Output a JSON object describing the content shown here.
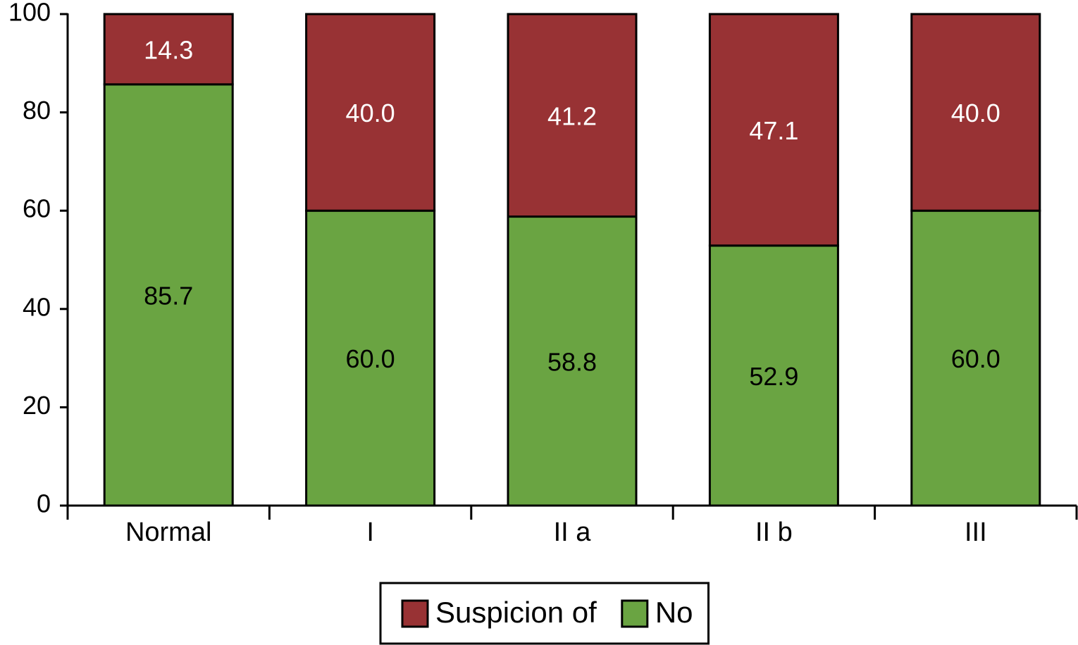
{
  "chart_data": {
    "type": "bar",
    "stacked": true,
    "categories": [
      "Normal",
      "I",
      "II a",
      "II b",
      "III"
    ],
    "series": [
      {
        "name": "No",
        "color": "#6aa442",
        "values": [
          85.7,
          60.0,
          58.8,
          52.9,
          60.0
        ],
        "value_labels": [
          "85.7",
          "60.0",
          "58.8",
          "52.9",
          "60.0"
        ],
        "label_color": "#000000"
      },
      {
        "name": "Suspicion of",
        "color": "#983234",
        "values": [
          14.3,
          40.0,
          41.2,
          47.1,
          40.0
        ],
        "value_labels": [
          "14.3",
          "40.0",
          "41.2",
          "47.1",
          "40.0"
        ],
        "label_color": "#ffffff"
      }
    ],
    "ylim": [
      0,
      100
    ],
    "yticks": [
      0,
      20,
      40,
      60,
      80,
      100
    ],
    "grid": false,
    "legend": "bottom"
  }
}
